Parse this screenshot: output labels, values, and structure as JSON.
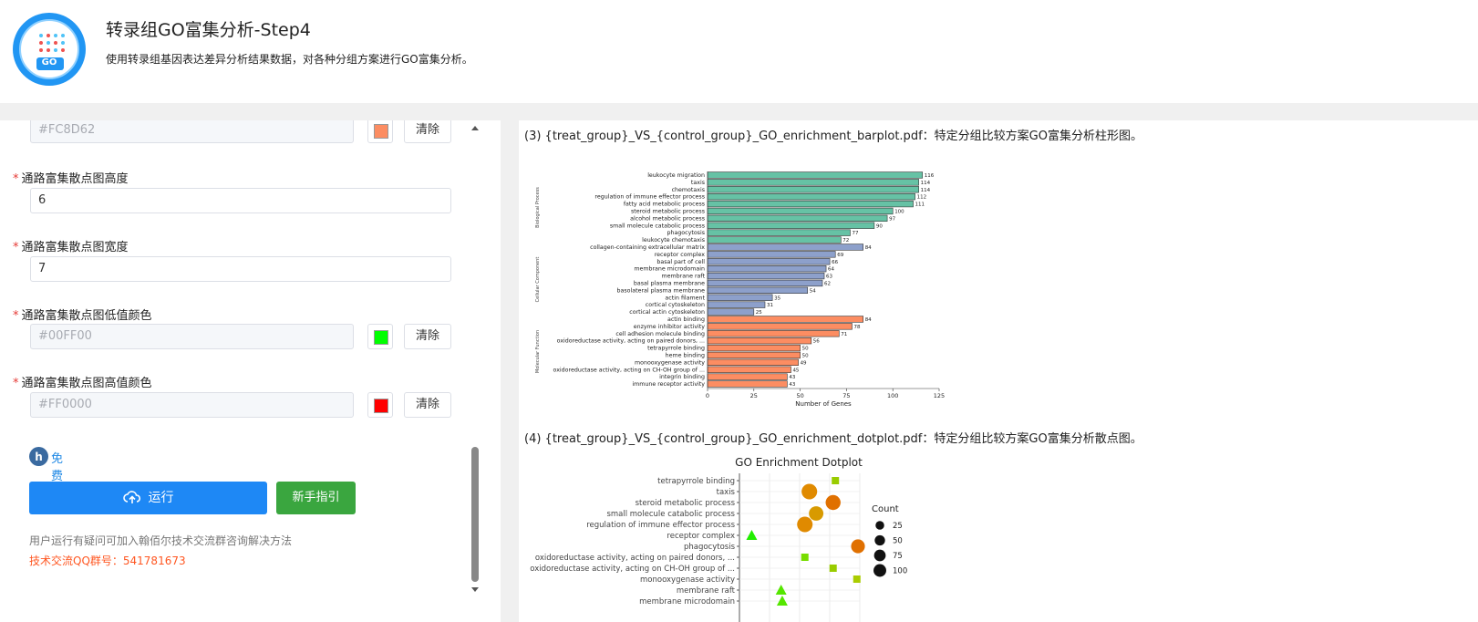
{
  "header": {
    "logo_text": "GO",
    "title": "转录组GO富集分析-Step4",
    "subtitle": "使用转录组基因表达差异分析结果数据，对各种分组方案进行GO富集分析。"
  },
  "form": {
    "top_color_value": "#FC8D62",
    "top_swatch": "#FC8D62",
    "clear_label": "清除",
    "height": {
      "label": "通路富集散点图高度",
      "value": "6"
    },
    "width": {
      "label": "通路富集散点图宽度",
      "value": "7"
    },
    "low_color": {
      "label": "通路富集散点图低值颜色",
      "value": "#00FF00",
      "swatch": "#00FF00"
    },
    "high_color": {
      "label": "通路富集散点图高值颜色",
      "value": "#FF0000",
      "swatch": "#FF0000"
    },
    "required_mark": "*",
    "free_label": "免费",
    "run_label": "运行",
    "guide_label": "新手指引",
    "help_text": "用户运行有疑问可加入翰佰尔技术交流群咨询解决方法",
    "qq_text": "技术交流QQ群号：541781673"
  },
  "results": {
    "caption3": "(3) {treat_group}_VS_{control_group}_GO_enrichment_barplot.pdf：特定分组比较方案GO富集分析柱形图。",
    "caption4": "(4) {treat_group}_VS_{control_group}_GO_enrichment_dotplot.pdf：特定分组比较方案GO富集分析散点图。"
  },
  "chart_data": [
    {
      "type": "bar",
      "orientation": "horizontal",
      "xlabel": "Number of Genes",
      "xlim": [
        0,
        125
      ],
      "xticks": [
        0,
        25,
        50,
        75,
        100,
        125
      ],
      "groups": [
        {
          "name": "Biological Process",
          "color": "#66C2A5",
          "categories": [
            "leukocyte migration",
            "taxis",
            "chemotaxis",
            "regulation of immune effector process",
            "fatty acid metabolic process",
            "steroid metabolic process",
            "alcohol metabolic process",
            "small molecule catabolic process",
            "phagocytosis",
            "leukocyte chemotaxis"
          ],
          "values": [
            116,
            114,
            114,
            112,
            111,
            100,
            97,
            90,
            77,
            72
          ]
        },
        {
          "name": "Cellular Component",
          "color": "#8DA0CB",
          "categories": [
            "collagen-containing extracellular matrix",
            "receptor complex",
            "basal part of cell",
            "membrane microdomain",
            "membrane raft",
            "basal plasma membrane",
            "basolateral plasma membrane",
            "actin filament",
            "cortical cytoskeleton",
            "cortical actin cytoskeleton"
          ],
          "values": [
            84,
            69,
            66,
            64,
            63,
            62,
            54,
            35,
            31,
            25
          ]
        },
        {
          "name": "Molecular Function",
          "color": "#FC8D62",
          "categories": [
            "actin binding",
            "enzyme inhibitor activity",
            "cell adhesion molecule binding",
            "oxidoreductase activity, acting on paired donors, ...",
            "tetrapyrrole binding",
            "heme binding",
            "monooxygenase activity",
            "oxidoreductase activity, acting on CH-OH group of ...",
            "integrin binding",
            "immune receptor activity"
          ],
          "values": [
            84,
            78,
            71,
            56,
            50,
            50,
            49,
            45,
            43,
            43
          ]
        }
      ]
    },
    {
      "type": "scatter",
      "title": "GO Enrichment Dotplot",
      "legend_title": "Count",
      "legend_sizes": [
        25,
        50,
        75,
        100
      ],
      "categories": [
        "tetrapyrrole binding",
        "taxis",
        "steroid metabolic process",
        "small molecule catabolic process",
        "regulation of immune effector process",
        "receptor complex",
        "phagocytosis",
        "oxidoreductase activity, acting on paired donors, ...",
        "oxidoreductase activity, acting on CH-OH group of ...",
        "monooxygenase activity",
        "membrane raft",
        "membrane microdomain"
      ],
      "points": [
        {
          "pos": 0.8,
          "count": 50,
          "shape": "square",
          "color": "#99CC00"
        },
        {
          "pos": 0.57,
          "count": 114,
          "shape": "circle",
          "color": "#E08A00"
        },
        {
          "pos": 0.78,
          "count": 100,
          "shape": "circle",
          "color": "#E07000"
        },
        {
          "pos": 0.63,
          "count": 90,
          "shape": "circle",
          "color": "#D89A00"
        },
        {
          "pos": 0.53,
          "count": 112,
          "shape": "circle",
          "color": "#E08A00"
        },
        {
          "pos": 0.06,
          "count": 69,
          "shape": "triangle",
          "color": "#22EE00"
        },
        {
          "pos": 1.0,
          "count": 77,
          "shape": "circle",
          "color": "#E07000"
        },
        {
          "pos": 0.53,
          "count": 56,
          "shape": "square",
          "color": "#77DD00"
        },
        {
          "pos": 0.78,
          "count": 45,
          "shape": "square",
          "color": "#99CC00"
        },
        {
          "pos": 0.99,
          "count": 49,
          "shape": "square",
          "color": "#AACC00"
        },
        {
          "pos": 0.32,
          "count": 63,
          "shape": "triangle",
          "color": "#55E600"
        },
        {
          "pos": 0.33,
          "count": 64,
          "shape": "triangle",
          "color": "#55E600"
        }
      ]
    }
  ]
}
